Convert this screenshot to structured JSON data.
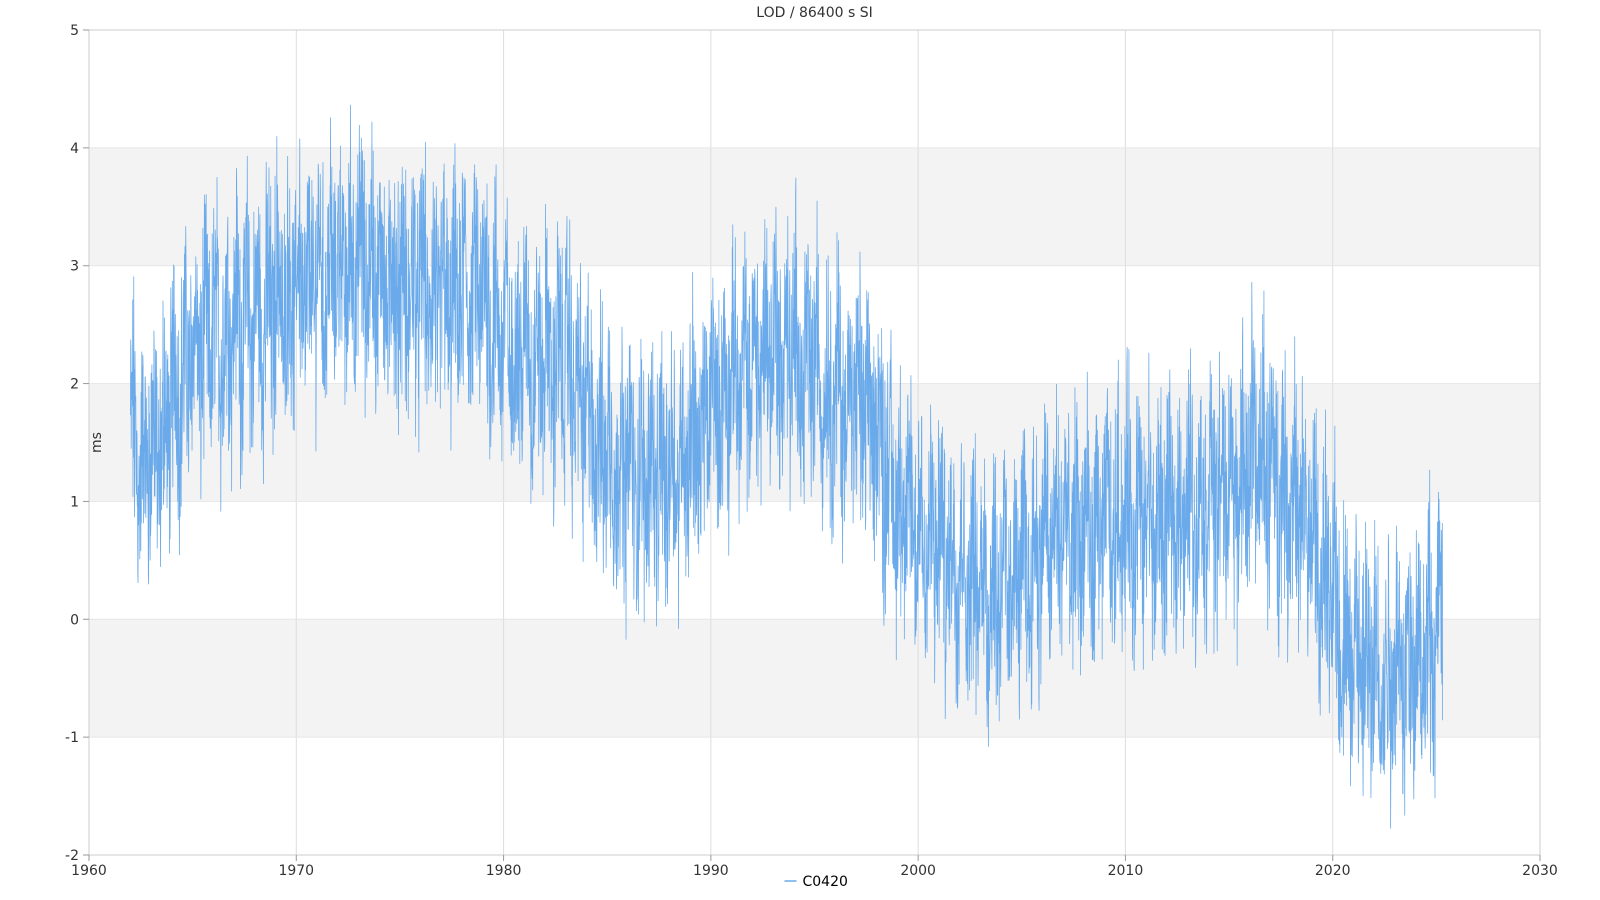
{
  "chart_data": {
    "type": "line",
    "title": "LOD / 86400 s SI",
    "xlabel": "",
    "ylabel": "ms",
    "xlim": [
      1960,
      2030
    ],
    "ylim": [
      -2,
      5
    ],
    "xticks": [
      1960,
      1970,
      1980,
      1990,
      2000,
      2010,
      2020,
      2030
    ],
    "yticks": [
      -2,
      -1,
      0,
      1,
      2,
      3,
      4,
      5
    ],
    "grid": true,
    "alternating_bands": true,
    "legend_position": "bottom-center",
    "colors": {
      "series": "#6aaaea",
      "band": "#f3f3f3",
      "grid": "#dddddd",
      "axis": "#cccccc"
    },
    "series": [
      {
        "name": "C0420",
        "x": [
          1962.0,
          1962.5,
          1963.0,
          1963.5,
          1964.0,
          1964.5,
          1965.0,
          1965.5,
          1966.0,
          1966.5,
          1967.0,
          1967.5,
          1968.0,
          1968.5,
          1969.0,
          1969.5,
          1970.0,
          1970.5,
          1971.0,
          1971.5,
          1972.0,
          1972.5,
          1973.0,
          1973.5,
          1974.0,
          1974.5,
          1975.0,
          1975.5,
          1976.0,
          1976.5,
          1977.0,
          1977.5,
          1978.0,
          1978.5,
          1979.0,
          1979.5,
          1980.0,
          1980.5,
          1981.0,
          1981.5,
          1982.0,
          1982.5,
          1983.0,
          1983.5,
          1984.0,
          1984.5,
          1985.0,
          1985.5,
          1986.0,
          1986.5,
          1987.0,
          1987.5,
          1988.0,
          1988.5,
          1989.0,
          1989.5,
          1990.0,
          1990.5,
          1991.0,
          1991.5,
          1992.0,
          1992.5,
          1993.0,
          1993.5,
          1994.0,
          1994.5,
          1995.0,
          1995.5,
          1996.0,
          1996.5,
          1997.0,
          1997.5,
          1998.0,
          1998.5,
          1999.0,
          1999.5,
          2000.0,
          2000.5,
          2001.0,
          2001.5,
          2002.0,
          2002.5,
          2003.0,
          2003.5,
          2004.0,
          2004.5,
          2005.0,
          2005.5,
          2006.0,
          2006.5,
          2007.0,
          2007.5,
          2008.0,
          2008.5,
          2009.0,
          2009.5,
          2010.0,
          2010.5,
          2011.0,
          2011.5,
          2012.0,
          2012.5,
          2013.0,
          2013.5,
          2014.0,
          2014.5,
          2015.0,
          2015.5,
          2016.0,
          2016.5,
          2017.0,
          2017.5,
          2018.0,
          2018.5,
          2019.0,
          2019.5,
          2020.0,
          2020.5,
          2021.0,
          2021.5,
          2022.0,
          2022.5,
          2023.0,
          2023.5,
          2024.0,
          2024.5,
          2025.0,
          2025.3
        ],
        "y": [
          1.6,
          1.3,
          1.5,
          1.4,
          1.9,
          2.0,
          2.3,
          2.3,
          2.4,
          2.4,
          2.6,
          2.5,
          2.6,
          2.5,
          2.8,
          2.6,
          2.9,
          2.7,
          3.0,
          2.8,
          3.1,
          2.9,
          3.1,
          2.9,
          3.0,
          2.8,
          2.9,
          2.7,
          2.9,
          2.6,
          2.8,
          2.6,
          2.8,
          2.7,
          2.8,
          2.5,
          2.5,
          2.2,
          2.4,
          2.1,
          2.3,
          2.1,
          2.3,
          1.9,
          1.8,
          1.5,
          1.5,
          1.2,
          1.4,
          1.1,
          1.3,
          1.1,
          1.3,
          1.3,
          1.6,
          1.5,
          1.9,
          1.8,
          2.1,
          2.0,
          2.2,
          2.2,
          2.4,
          2.2,
          2.3,
          2.1,
          2.2,
          1.9,
          2.0,
          1.8,
          1.9,
          1.7,
          1.7,
          1.3,
          1.0,
          0.9,
          0.8,
          0.6,
          0.7,
          0.5,
          0.6,
          0.3,
          0.4,
          0.2,
          0.4,
          0.2,
          0.5,
          0.4,
          0.7,
          0.6,
          0.8,
          0.6,
          0.8,
          0.6,
          0.9,
          0.7,
          1.0,
          0.8,
          0.9,
          0.7,
          0.9,
          0.8,
          1.0,
          0.9,
          1.1,
          1.0,
          1.2,
          1.1,
          1.4,
          1.3,
          1.3,
          1.1,
          1.1,
          0.8,
          0.7,
          0.3,
          0.2,
          -0.2,
          -0.2,
          -0.5,
          -0.4,
          -0.6,
          -0.3,
          -0.5,
          -0.2,
          -0.3,
          -0.1,
          0.0
        ]
      }
    ]
  }
}
